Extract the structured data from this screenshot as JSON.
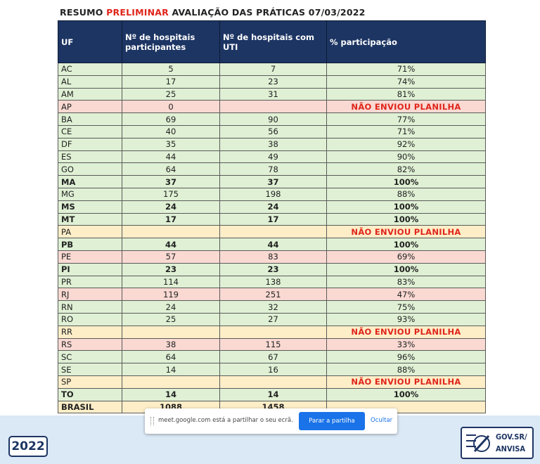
{
  "title": {
    "prefix": "RESUMO ",
    "highlight": "PRELIMINAR",
    "suffix": " AVALIAÇÃO DAS PRÁTICAS 07/03/2022"
  },
  "columns": [
    "UF",
    "Nº de hospitais participantes",
    "Nº de hospitais com UTI",
    "% participação"
  ],
  "rows": [
    {
      "uf": "AC",
      "part": "5",
      "uti": "7",
      "pct": "71%",
      "color": "g",
      "bold": false,
      "missing": false
    },
    {
      "uf": "AL",
      "part": "17",
      "uti": "23",
      "pct": "74%",
      "color": "g",
      "bold": false,
      "missing": false
    },
    {
      "uf": "AM",
      "part": "25",
      "uti": "31",
      "pct": "81%",
      "color": "g",
      "bold": false,
      "missing": false
    },
    {
      "uf": "AP",
      "part": "0",
      "uti": "",
      "pct": "NÃO ENVIOU PLANILHA",
      "color": "r",
      "bold": false,
      "missing": true
    },
    {
      "uf": "BA",
      "part": "69",
      "uti": "90",
      "pct": "77%",
      "color": "g",
      "bold": false,
      "missing": false
    },
    {
      "uf": "CE",
      "part": "40",
      "uti": "56",
      "pct": "71%",
      "color": "g",
      "bold": false,
      "missing": false
    },
    {
      "uf": "DF",
      "part": "35",
      "uti": "38",
      "pct": "92%",
      "color": "g",
      "bold": false,
      "missing": false
    },
    {
      "uf": "ES",
      "part": "44",
      "uti": "49",
      "pct": "90%",
      "color": "g",
      "bold": false,
      "missing": false
    },
    {
      "uf": "GO",
      "part": "64",
      "uti": "78",
      "pct": "82%",
      "color": "g",
      "bold": false,
      "missing": false
    },
    {
      "uf": "MA",
      "part": "37",
      "uti": "37",
      "pct": "100%",
      "color": "g",
      "bold": true,
      "missing": false
    },
    {
      "uf": "MG",
      "part": "175",
      "uti": "198",
      "pct": "88%",
      "color": "g",
      "bold": false,
      "missing": false
    },
    {
      "uf": "MS",
      "part": "24",
      "uti": "24",
      "pct": "100%",
      "color": "g",
      "bold": true,
      "missing": false
    },
    {
      "uf": "MT",
      "part": "17",
      "uti": "17",
      "pct": "100%",
      "color": "g",
      "bold": true,
      "missing": false
    },
    {
      "uf": "PA",
      "part": "",
      "uti": "",
      "pct": "NÃO ENVIOU PLANILHA",
      "color": "y",
      "bold": false,
      "missing": true
    },
    {
      "uf": "PB",
      "part": "44",
      "uti": "44",
      "pct": "100%",
      "color": "g",
      "bold": true,
      "missing": false
    },
    {
      "uf": "PE",
      "part": "57",
      "uti": "83",
      "pct": "69%",
      "color": "r",
      "bold": false,
      "missing": false
    },
    {
      "uf": "PI",
      "part": "23",
      "uti": "23",
      "pct": "100%",
      "color": "g",
      "bold": true,
      "missing": false
    },
    {
      "uf": "PR",
      "part": "114",
      "uti": "138",
      "pct": "83%",
      "color": "g",
      "bold": false,
      "missing": false
    },
    {
      "uf": "RJ",
      "part": "119",
      "uti": "251",
      "pct": "47%",
      "color": "r",
      "bold": false,
      "missing": false
    },
    {
      "uf": "RN",
      "part": "24",
      "uti": "32",
      "pct": "75%",
      "color": "g",
      "bold": false,
      "missing": false
    },
    {
      "uf": "RO",
      "part": "25",
      "uti": "27",
      "pct": "93%",
      "color": "g",
      "bold": false,
      "missing": false
    },
    {
      "uf": "RR",
      "part": "",
      "uti": "",
      "pct": "NÃO ENVIOU PLANILHA",
      "color": "y",
      "bold": false,
      "missing": true
    },
    {
      "uf": "RS",
      "part": "38",
      "uti": "115",
      "pct": "33%",
      "color": "r",
      "bold": false,
      "missing": false
    },
    {
      "uf": "SC",
      "part": "64",
      "uti": "67",
      "pct": "96%",
      "color": "g",
      "bold": false,
      "missing": false
    },
    {
      "uf": "SE",
      "part": "14",
      "uti": "16",
      "pct": "88%",
      "color": "g",
      "bold": false,
      "missing": false
    },
    {
      "uf": "SP",
      "part": "",
      "uti": "",
      "pct": "NÃO ENVIOU PLANILHA",
      "color": "y",
      "bold": false,
      "missing": true
    },
    {
      "uf": "TO",
      "part": "14",
      "uti": "14",
      "pct": "100%",
      "color": "g",
      "bold": true,
      "missing": false
    }
  ],
  "total": {
    "uf": "BRASIL",
    "part": "1088",
    "uti": "1458",
    "pct": ""
  },
  "share_bar": {
    "message": "meet.google.com está a partilhar o seu ecrã.",
    "stop_label": "Parar a partilha",
    "hide_label": "Ocultar"
  },
  "badge_2022": "2022",
  "gov_logo": {
    "line1": "GOV.SR/",
    "line2": "ANVISA"
  },
  "colors": {
    "header": "#1d3563",
    "green_row": "#dff0d4",
    "red_row": "#f9d9d2",
    "yellow_row": "#fdeec8",
    "alert_text": "#e0251b",
    "accent_button": "#1a73e8"
  }
}
